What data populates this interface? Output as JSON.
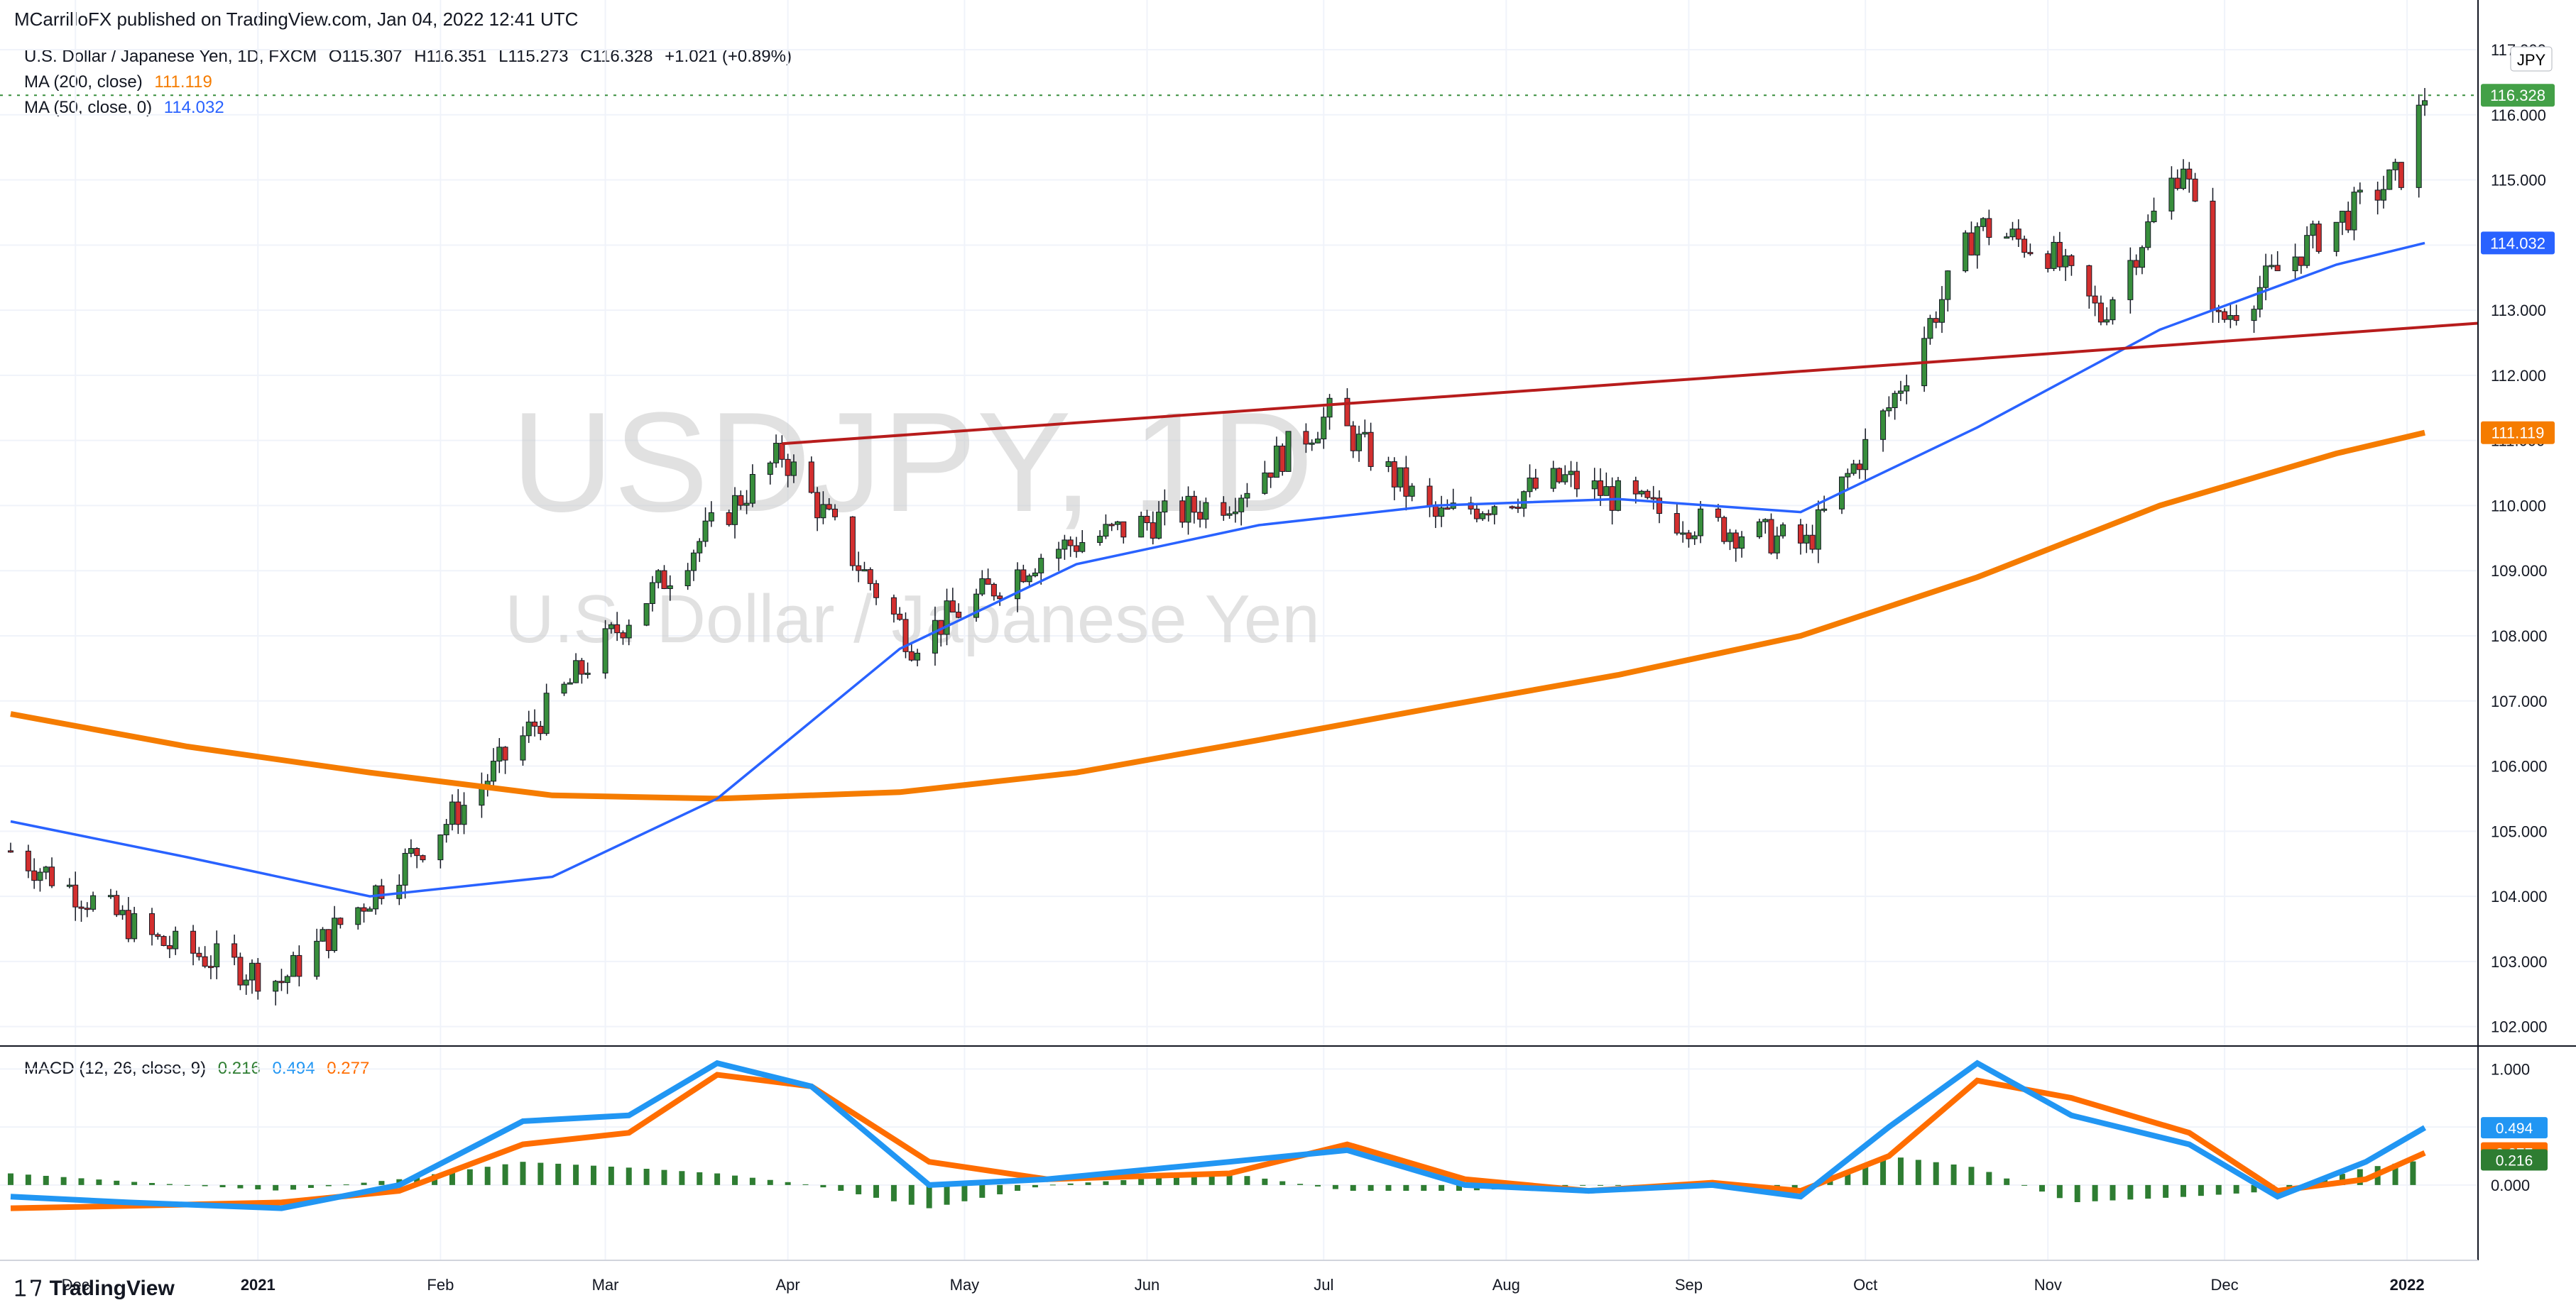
{
  "header": {
    "published": "MCarrilloFX published on TradingView.com, Jan 04, 2022 12:41 UTC"
  },
  "symbol": {
    "name": "U.S. Dollar / Japanese Yen, 1D, FXCM",
    "open": "O115.307",
    "high": "H116.351",
    "low": "L115.273",
    "close": "C116.328",
    "change": "+1.021 (+0.89%)"
  },
  "ma200": {
    "label": "MA (200, close)",
    "value": "111.119",
    "color": "#f57c00"
  },
  "ma50": {
    "label": "MA (50, close, 0)",
    "value": "114.032",
    "color": "#2962ff"
  },
  "macd_legend": {
    "label": "MACD (12, 26, close, 9)",
    "hist": "0.216",
    "macd": "0.494",
    "signal": "0.277"
  },
  "watermark": {
    "ticker": "USDJPY, 1D",
    "name": "U.S. Dollar / Japanese Yen"
  },
  "currency": "JPY",
  "price_tag": "116.328",
  "footer": {
    "brand": "TradingView",
    "logo": "tradingview-logo-icon"
  },
  "colors": {
    "up": "#26a69a",
    "down": "#ef5350",
    "candle_up": "#388e3c",
    "candle_down": "#d32f2f",
    "trend": "#b71c1c",
    "macd": "#2196f3",
    "signal": "#ff6d00",
    "hist": "#2e7d32"
  },
  "chart_data": [
    {
      "type": "candlestick",
      "title": "U.S. Dollar / Japanese Yen, 1D, FXCM",
      "ylim": [
        101.8,
        117.0
      ],
      "y_ticks": [
        "102.000",
        "103.000",
        "104.000",
        "105.000",
        "106.000",
        "107.000",
        "108.000",
        "109.000",
        "110.000",
        "111.000",
        "112.000",
        "113.000",
        "114.000",
        "115.000",
        "116.000",
        "117.000"
      ],
      "x_ticks": [
        "Dec",
        "2021",
        "Feb",
        "Mar",
        "Apr",
        "May",
        "Jun",
        "Jul",
        "Aug",
        "Sep",
        "Oct",
        "Nov",
        "Dec",
        "2022"
      ],
      "price_path": {
        "dates": [
          "2020-11-20",
          "2020-12-15",
          "2021-01-05",
          "2021-02-05",
          "2021-03-05",
          "2021-03-31",
          "2021-04-22",
          "2021-05-15",
          "2021-06-15",
          "2021-07-02",
          "2021-07-20",
          "2021-08-11",
          "2021-08-30",
          "2021-09-21",
          "2021-10-05",
          "2021-10-20",
          "2021-11-01",
          "2021-11-10",
          "2021-11-24",
          "2021-11-30",
          "2021-12-15",
          "2021-12-31",
          "2022-01-04"
        ],
        "close": [
          104.7,
          103.3,
          102.7,
          105.4,
          108.3,
          110.8,
          107.9,
          109.3,
          110.1,
          111.4,
          109.8,
          110.4,
          109.8,
          109.4,
          111.5,
          114.3,
          113.9,
          112.9,
          115.3,
          112.8,
          114.0,
          115.1,
          116.3
        ]
      },
      "ma200": {
        "dates": [
          "2020-11-20",
          "2020-12-20",
          "2021-01-20",
          "2021-02-20",
          "2021-03-20",
          "2021-04-20",
          "2021-05-20",
          "2021-06-20",
          "2021-07-20",
          "2021-08-20",
          "2021-09-20",
          "2021-10-20",
          "2021-11-20",
          "2021-12-20",
          "2022-01-04"
        ],
        "values": [
          106.8,
          106.3,
          105.9,
          105.55,
          105.5,
          105.6,
          105.9,
          106.4,
          106.9,
          107.4,
          108.0,
          108.9,
          110.0,
          110.8,
          111.119
        ]
      },
      "ma50": {
        "dates": [
          "2020-11-20",
          "2020-12-20",
          "2021-01-20",
          "2021-02-20",
          "2021-03-20",
          "2021-04-20",
          "2021-05-20",
          "2021-06-20",
          "2021-07-20",
          "2021-08-20",
          "2021-09-20",
          "2021-10-20",
          "2021-11-20",
          "2021-12-20",
          "2022-01-04"
        ],
        "values": [
          105.15,
          104.6,
          104.0,
          104.3,
          105.5,
          107.8,
          109.1,
          109.7,
          110.0,
          110.1,
          109.9,
          111.2,
          112.7,
          113.7,
          114.032
        ]
      },
      "trendline": {
        "start": [
          "2021-03-31",
          110.95
        ],
        "end": [
          "2022-01-04",
          112.8
        ]
      }
    },
    {
      "type": "line",
      "title": "MACD (12, 26, close, 9)",
      "ylim": [
        -0.6,
        1.1
      ],
      "y_ticks": [
        "0.000",
        "0.500",
        "1.000"
      ],
      "dates": [
        "2020-11-20",
        "2020-12-10",
        "2021-01-05",
        "2021-01-25",
        "2021-02-15",
        "2021-03-05",
        "2021-03-20",
        "2021-04-05",
        "2021-04-25",
        "2021-05-15",
        "2021-06-15",
        "2021-07-05",
        "2021-07-25",
        "2021-08-15",
        "2021-09-05",
        "2021-09-20",
        "2021-10-05",
        "2021-10-20",
        "2021-11-05",
        "2021-11-25",
        "2021-12-10",
        "2021-12-25",
        "2022-01-04"
      ],
      "series": [
        {
          "name": "MACD",
          "values": [
            -0.1,
            -0.15,
            -0.2,
            0.0,
            0.55,
            0.6,
            1.05,
            0.85,
            0.0,
            0.05,
            0.2,
            0.3,
            0.0,
            -0.05,
            0.0,
            -0.1,
            0.5,
            1.05,
            0.6,
            0.35,
            -0.1,
            0.2,
            0.494
          ]
        },
        {
          "name": "Signal",
          "values": [
            -0.2,
            -0.18,
            -0.15,
            -0.05,
            0.35,
            0.45,
            0.95,
            0.85,
            0.2,
            0.05,
            0.1,
            0.35,
            0.05,
            -0.05,
            0.02,
            -0.05,
            0.25,
            0.9,
            0.75,
            0.45,
            -0.05,
            0.05,
            0.277
          ]
        }
      ]
    }
  ]
}
